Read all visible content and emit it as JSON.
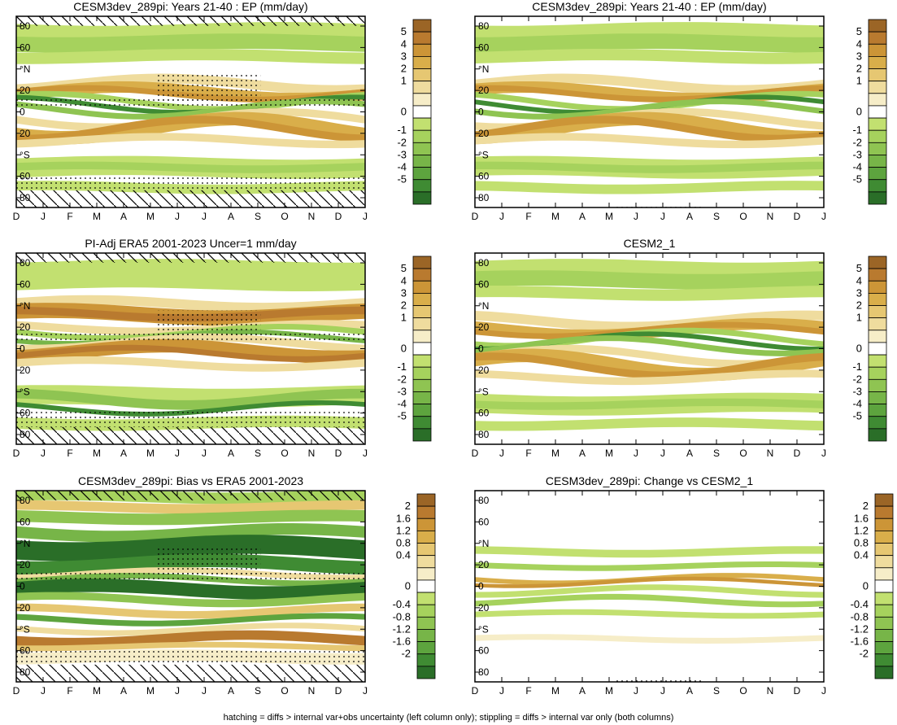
{
  "caption": "hatching = diffs > internal var+obs uncertainty (left column only); stippling = diffs > internal var only (both columns)",
  "colorbars": {
    "full": {
      "labels": [
        "5",
        "4",
        "3",
        "2",
        "1",
        "0",
        "-1",
        "-2",
        "-3",
        "-4",
        "-5"
      ],
      "colors": [
        "#9b6526",
        "#b97a2f",
        "#cc9537",
        "#d9ae4a",
        "#e6c772",
        "#efdc9e",
        "#f6edc8",
        "#ffffff",
        "#c2e070",
        "#a6d25d",
        "#8fc452",
        "#77b548",
        "#5da43e",
        "#3f8b33",
        "#2a6e28"
      ]
    },
    "diff": {
      "labels": [
        "2",
        "1.6",
        "1.2",
        "0.8",
        "0.4",
        "0",
        "-0.4",
        "-0.8",
        "-1.2",
        "-1.6",
        "-2"
      ],
      "colors": [
        "#9b6526",
        "#b97a2f",
        "#cc9537",
        "#d9ae4a",
        "#e6c772",
        "#efdc9e",
        "#f6edc8",
        "#ffffff",
        "#c2e070",
        "#a6d25d",
        "#8fc452",
        "#77b548",
        "#5da43e",
        "#3f8b33",
        "#2a6e28"
      ]
    }
  },
  "chart_data": [
    {
      "type": "heatmap",
      "title": "CESM3dev_289pi: Years 21-40 : EP (mm/day)",
      "x_tick_labels": [
        "D",
        "J",
        "F",
        "M",
        "A",
        "M",
        "J",
        "J",
        "A",
        "S",
        "O",
        "N",
        "D",
        "J"
      ],
      "y_tick_labels": [
        "80",
        "60",
        "°N",
        "20",
        "0",
        "20",
        "°S",
        "60",
        "80"
      ],
      "colorbar": "full",
      "hatching": true,
      "stippling": true
    },
    {
      "type": "heatmap",
      "title": "CESM3dev_289pi: Years 21-40 : EP (mm/day)",
      "x_tick_labels": [
        "D",
        "J",
        "F",
        "M",
        "A",
        "M",
        "J",
        "J",
        "A",
        "S",
        "O",
        "N",
        "D",
        "J"
      ],
      "y_tick_labels": [
        "80",
        "60",
        "°N",
        "20",
        "0",
        "20",
        "°S",
        "60",
        "80"
      ],
      "colorbar": "full",
      "hatching": false,
      "stippling": true
    },
    {
      "type": "heatmap",
      "title": "PI-Adj ERA5 2001-2023 Uncer=1 mm/day",
      "x_tick_labels": [
        "D",
        "J",
        "F",
        "M",
        "A",
        "M",
        "J",
        "J",
        "A",
        "S",
        "O",
        "N",
        "D",
        "J"
      ],
      "y_tick_labels": [
        "80",
        "60",
        "°N",
        "20",
        "0",
        "20",
        "°S",
        "60",
        "80"
      ],
      "colorbar": "full",
      "hatching": true,
      "stippling": true
    },
    {
      "type": "heatmap",
      "title": "CESM2_1",
      "x_tick_labels": [
        "D",
        "J",
        "F",
        "M",
        "A",
        "M",
        "J",
        "J",
        "A",
        "S",
        "O",
        "N",
        "D",
        "J"
      ],
      "y_tick_labels": [
        "80",
        "60",
        "°N",
        "20",
        "0",
        "20",
        "°S",
        "60",
        "80"
      ],
      "colorbar": "full",
      "hatching": false,
      "stippling": false
    },
    {
      "type": "heatmap",
      "title": "CESM3dev_289pi: Bias vs ERA5 2001-2023",
      "x_tick_labels": [
        "D",
        "J",
        "F",
        "M",
        "A",
        "M",
        "J",
        "J",
        "A",
        "S",
        "O",
        "N",
        "D",
        "J"
      ],
      "y_tick_labels": [
        "80",
        "60",
        "°N",
        "20",
        "0",
        "20",
        "°S",
        "60",
        "80"
      ],
      "colorbar": "diff",
      "hatching": true,
      "stippling": true
    },
    {
      "type": "heatmap",
      "title": "CESM3dev_289pi: Change vs CESM2_1",
      "x_tick_labels": [
        "D",
        "J",
        "F",
        "M",
        "A",
        "M",
        "J",
        "J",
        "A",
        "S",
        "O",
        "N",
        "D",
        "J"
      ],
      "y_tick_labels": [
        "80",
        "60",
        "°N",
        "20",
        "0",
        "20",
        "°S",
        "60",
        "80"
      ],
      "colorbar": "diff",
      "hatching": false,
      "stippling": true
    }
  ]
}
